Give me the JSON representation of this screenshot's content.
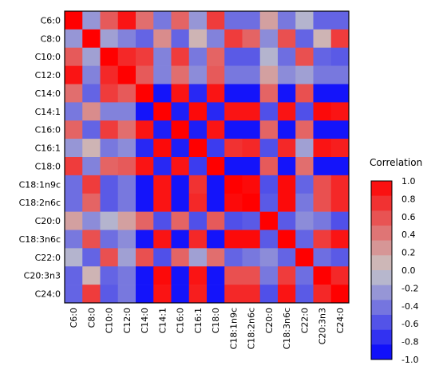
{
  "chart_data": {
    "type": "heatmap",
    "labels": [
      "C6:0",
      "C8:0",
      "C10:0",
      "C12:0",
      "C14:0",
      "C14:1",
      "C16:0",
      "C16:1",
      "C18:0",
      "C18:1n9c",
      "C18:2n6c",
      "C20:0",
      "C18:3n6c",
      "C22:0",
      "C20:3n3",
      "C24:0"
    ],
    "values": [
      [
        1.0,
        -0.25,
        0.55,
        0.9,
        0.45,
        -0.4,
        0.5,
        -0.25,
        0.7,
        -0.45,
        -0.45,
        0.2,
        -0.4,
        -0.1,
        -0.5,
        -0.5
      ],
      [
        -0.25,
        1.0,
        -0.2,
        -0.35,
        -0.5,
        0.3,
        -0.5,
        0.1,
        -0.35,
        0.7,
        0.5,
        -0.3,
        0.6,
        -0.5,
        0.1,
        0.7
      ],
      [
        0.55,
        -0.2,
        1.0,
        0.8,
        0.7,
        -0.35,
        0.7,
        -0.4,
        0.5,
        -0.55,
        -0.55,
        -0.1,
        -0.45,
        0.6,
        -0.5,
        -0.55
      ],
      [
        0.9,
        -0.35,
        0.8,
        1.0,
        0.55,
        -0.35,
        0.45,
        -0.3,
        0.55,
        -0.4,
        -0.4,
        0.2,
        -0.3,
        -0.2,
        -0.4,
        -0.4
      ],
      [
        0.45,
        -0.5,
        0.7,
        0.55,
        1.0,
        -0.9,
        0.9,
        -0.8,
        0.9,
        -0.9,
        -0.9,
        0.5,
        -0.9,
        0.6,
        -0.9,
        -0.9
      ],
      [
        -0.4,
        0.3,
        -0.35,
        -0.35,
        -0.9,
        1.0,
        -0.85,
        0.95,
        -0.8,
        0.9,
        0.9,
        -0.6,
        0.9,
        -0.6,
        0.95,
        0.9
      ],
      [
        0.5,
        -0.5,
        0.7,
        0.45,
        0.9,
        -0.85,
        1.0,
        -0.85,
        0.9,
        -0.9,
        -0.9,
        0.5,
        -0.9,
        0.5,
        -0.9,
        -0.9
      ],
      [
        -0.25,
        0.1,
        -0.4,
        -0.3,
        -0.8,
        0.95,
        -0.85,
        1.0,
        -0.7,
        0.75,
        0.8,
        -0.6,
        0.8,
        -0.2,
        0.9,
        0.85
      ],
      [
        0.7,
        -0.35,
        0.5,
        0.55,
        0.9,
        -0.8,
        0.9,
        -0.7,
        1.0,
        -0.9,
        -0.9,
        0.55,
        -0.9,
        0.45,
        -0.9,
        -0.9
      ],
      [
        -0.45,
        0.7,
        -0.55,
        -0.4,
        -0.9,
        0.9,
        -0.9,
        0.75,
        -0.9,
        1.0,
        0.95,
        -0.6,
        0.95,
        -0.5,
        0.6,
        0.8
      ],
      [
        -0.45,
        0.5,
        -0.55,
        -0.4,
        -0.9,
        0.9,
        -0.9,
        0.8,
        -0.9,
        0.95,
        1.0,
        -0.55,
        0.95,
        -0.4,
        0.6,
        0.8
      ],
      [
        0.2,
        -0.3,
        -0.1,
        0.2,
        0.5,
        -0.6,
        0.5,
        -0.6,
        0.55,
        -0.6,
        -0.55,
        1.0,
        -0.55,
        -0.3,
        -0.4,
        -0.6
      ],
      [
        -0.4,
        0.6,
        -0.45,
        -0.3,
        -0.9,
        0.9,
        -0.9,
        0.8,
        -0.9,
        0.95,
        0.95,
        -0.55,
        1.0,
        -0.5,
        0.7,
        0.9
      ],
      [
        -0.1,
        -0.5,
        0.6,
        -0.2,
        0.6,
        -0.6,
        0.5,
        -0.2,
        0.45,
        -0.5,
        -0.4,
        -0.3,
        -0.5,
        1.0,
        -0.45,
        -0.55
      ],
      [
        -0.5,
        0.1,
        -0.5,
        -0.4,
        -0.9,
        0.95,
        -0.9,
        0.9,
        -0.9,
        0.6,
        0.6,
        -0.4,
        0.7,
        -0.45,
        1.0,
        0.8
      ],
      [
        -0.5,
        0.7,
        -0.55,
        -0.4,
        -0.9,
        0.9,
        -0.9,
        0.85,
        -0.9,
        0.8,
        0.8,
        -0.6,
        0.9,
        -0.55,
        0.8,
        1.0
      ]
    ],
    "value_range": [
      -1.0,
      1.0
    ],
    "legend": {
      "title": "Correlation",
      "ticks": [
        "1.0",
        "0.8",
        "0.6",
        "0.4",
        "0.2",
        "0.0",
        "-0.2",
        "-0.4",
        "-0.6",
        "-0.8",
        "-1.0"
      ],
      "placement": "right",
      "bins": 12
    },
    "colors": {
      "high": "#ff0000",
      "mid": "#c8c8c8",
      "low": "#0000ff",
      "frame": "#000000"
    },
    "grid": false
  }
}
